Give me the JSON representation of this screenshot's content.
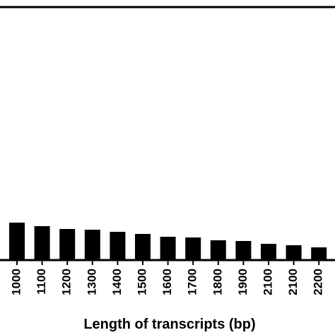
{
  "chart_data": {
    "type": "bar",
    "x_label": "Length of transcripts (bp)",
    "categories": [
      "1000",
      "1100",
      "1200",
      "1300",
      "1400",
      "1500",
      "1600",
      "1700",
      "1800",
      "1900",
      "2100",
      "2100",
      "2200"
    ],
    "values": [
      53,
      48,
      44,
      43,
      40,
      37,
      33,
      32,
      28,
      27,
      23,
      21,
      18
    ],
    "color": "#000000",
    "ylim": [
      0,
      358
    ]
  }
}
